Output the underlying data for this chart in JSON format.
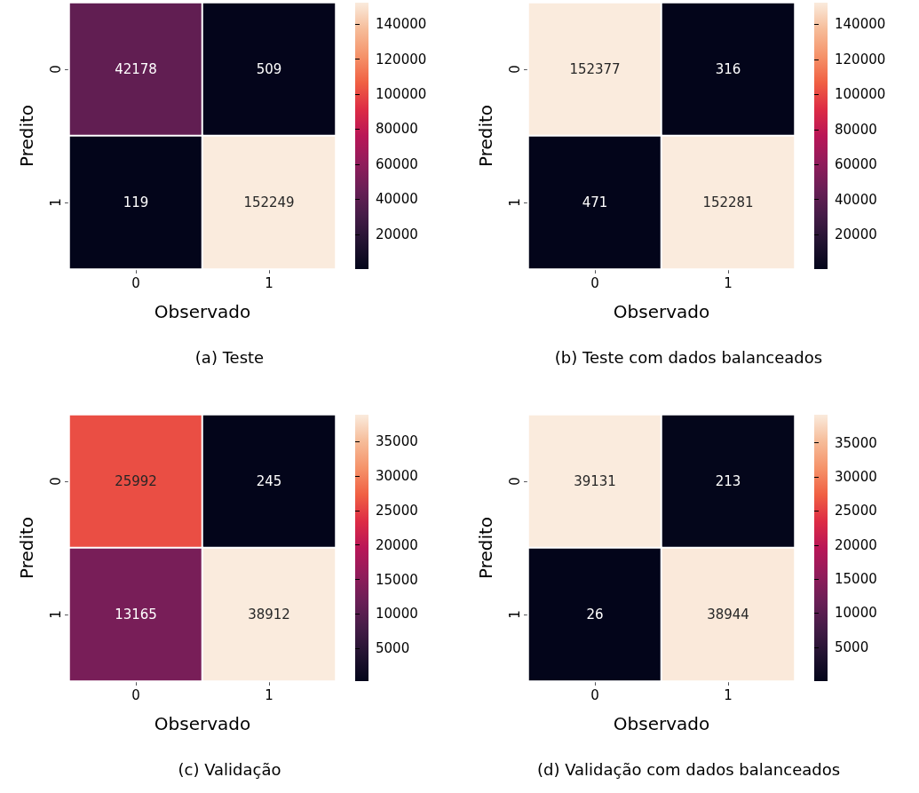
{
  "chart_data": [
    {
      "type": "heatmap",
      "title": "(a) Teste",
      "xlabel": "Observado",
      "ylabel": "Predito",
      "categories": [
        "0",
        "1"
      ],
      "y_categories": [
        "0",
        "1"
      ],
      "cells": [
        [
          42178,
          509
        ],
        [
          119,
          152249
        ]
      ],
      "clim": [
        119,
        152249
      ],
      "cticks": [
        20000,
        40000,
        60000,
        80000,
        100000,
        120000,
        140000
      ],
      "data_labels": true
    },
    {
      "type": "heatmap",
      "title": "(b) Teste com dados balanceados",
      "xlabel": "Observado",
      "ylabel": "Predito",
      "categories": [
        "0",
        "1"
      ],
      "y_categories": [
        "0",
        "1"
      ],
      "cells": [
        [
          152377,
          316
        ],
        [
          471,
          152281
        ]
      ],
      "clim": [
        316,
        152377
      ],
      "cticks": [
        20000,
        40000,
        60000,
        80000,
        100000,
        120000,
        140000
      ],
      "data_labels": true
    },
    {
      "type": "heatmap",
      "title": "(c) Validação",
      "xlabel": "Observado",
      "ylabel": "Predito",
      "categories": [
        "0",
        "1"
      ],
      "y_categories": [
        "0",
        "1"
      ],
      "cells": [
        [
          25992,
          245
        ],
        [
          13165,
          38912
        ]
      ],
      "clim": [
        245,
        38912
      ],
      "cticks": [
        5000,
        10000,
        15000,
        20000,
        25000,
        30000,
        35000
      ],
      "data_labels": true
    },
    {
      "type": "heatmap",
      "title": "(d) Validação com dados balanceados",
      "xlabel": "Observado",
      "ylabel": "Predito",
      "categories": [
        "0",
        "1"
      ],
      "y_categories": [
        "0",
        "1"
      ],
      "cells": [
        [
          39131,
          213
        ],
        [
          26,
          38944
        ]
      ],
      "clim": [
        26,
        39131
      ],
      "cticks": [
        5000,
        10000,
        15000,
        20000,
        25000,
        30000,
        35000
      ],
      "data_labels": true
    }
  ]
}
